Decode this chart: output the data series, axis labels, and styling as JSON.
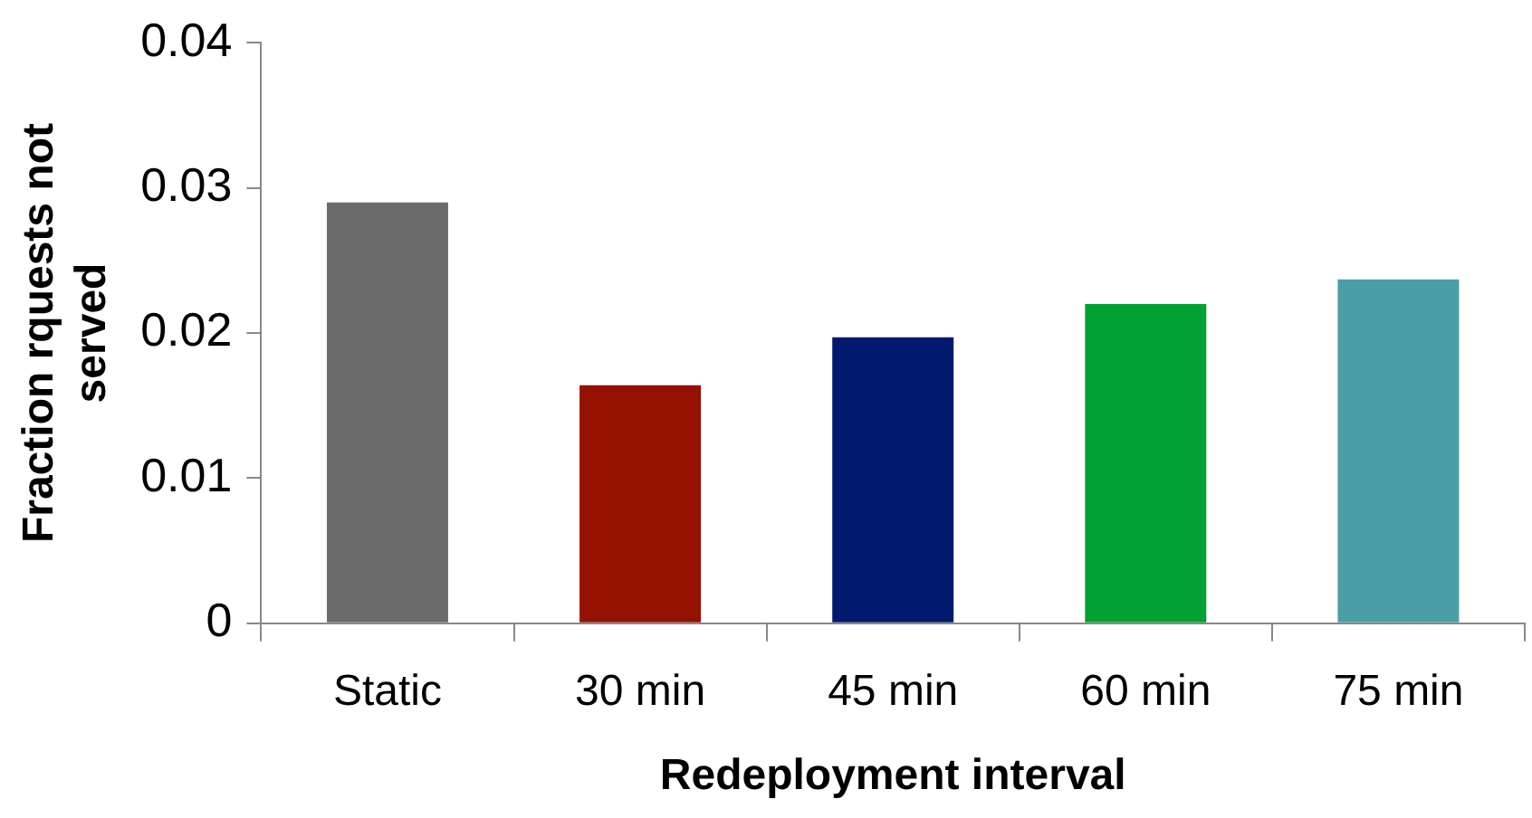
{
  "chart_data": {
    "type": "bar",
    "xlabel": "Redeployment interval",
    "ylabel": "Fraction rquests not served",
    "categories": [
      "Static",
      "30 min",
      "45 min",
      "60 min",
      "75 min"
    ],
    "values": [
      0.029,
      0.0164,
      0.0197,
      0.022,
      0.0237
    ],
    "colors": [
      "#6b6b6b",
      "#941100",
      "#011a6e",
      "#00a032",
      "#4a9fa6"
    ],
    "ylim": [
      0,
      0.04
    ],
    "yticks": [
      0,
      0.01,
      0.02,
      0.03,
      0.04
    ],
    "grid": false,
    "legend": false
  }
}
